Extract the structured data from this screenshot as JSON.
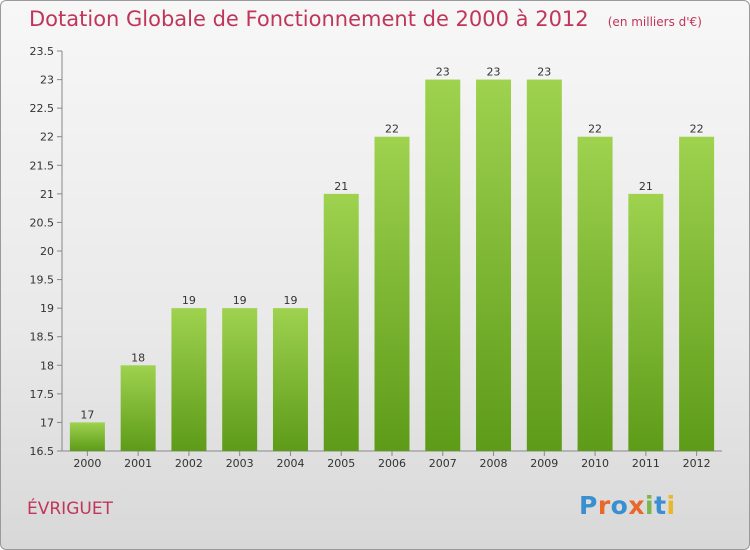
{
  "title": "Dotation Globale de Fonctionnement de 2000 à 2012",
  "unit_note": "(en milliers d'€)",
  "commune": "ÉVRIGUET",
  "logo": {
    "text": "Proxiti",
    "letters": [
      "P",
      "r",
      "o",
      "x",
      "i",
      "t",
      "i"
    ],
    "colors": [
      "#3a8fd0",
      "#e8682a",
      "#3a8fd0",
      "#e8682a",
      "#7ab648",
      "#3a8fd0",
      "#e8b82a"
    ]
  },
  "colors": {
    "bar_light": "#9ed24f",
    "bar_dark": "#5d9b18",
    "accent": "#c0355a"
  },
  "chart_data": {
    "type": "bar",
    "title": "Dotation Globale de Fonctionnement de 2000 à 2012",
    "xlabel": "",
    "ylabel": "",
    "categories": [
      "2000",
      "2001",
      "2002",
      "2003",
      "2004",
      "2005",
      "2006",
      "2007",
      "2008",
      "2009",
      "2010",
      "2011",
      "2012"
    ],
    "values": [
      17,
      18,
      19,
      19,
      19,
      21,
      22,
      23,
      23,
      23,
      22,
      21,
      22
    ],
    "data_labels": [
      "17",
      "18",
      "19",
      "19",
      "19",
      "21",
      "22",
      "23",
      "23",
      "23",
      "22",
      "21",
      "22"
    ],
    "ylim": [
      16.5,
      23.5
    ],
    "yticks": [
      "16.5",
      "17",
      "17.5",
      "18",
      "18.5",
      "19",
      "19.5",
      "20",
      "20.5",
      "21",
      "21.5",
      "22",
      "22.5",
      "23",
      "23.5"
    ],
    "grid": false
  }
}
